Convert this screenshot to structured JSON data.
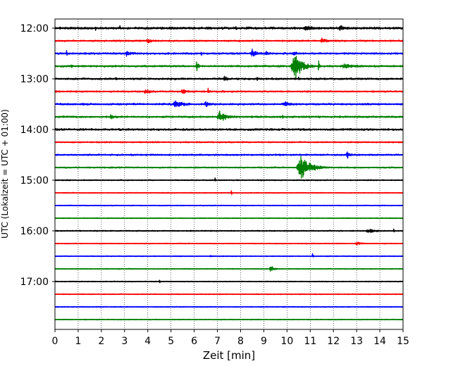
{
  "chart_data": {
    "type": "line",
    "subtype": "seismic-helicorder",
    "xlabel": "Zeit  [min]",
    "ylabel": "UTC (Lokalzeit = UTC + 01:00)",
    "xlim": [
      0,
      15
    ],
    "x_ticks": [
      0,
      1,
      2,
      3,
      4,
      5,
      6,
      7,
      8,
      9,
      10,
      11,
      12,
      13,
      14,
      15
    ],
    "x_tick_labels": [
      "0",
      "1",
      "2",
      "3",
      "4",
      "5",
      "6",
      "7",
      "8",
      "9",
      "10",
      "11",
      "12",
      "13",
      "14",
      "15"
    ],
    "vertical_grid": "dotted",
    "trace_interval_min": 15,
    "trace_count": 24,
    "trace_colors": [
      "#000000",
      "#ff0000",
      "#0000ff",
      "#008000"
    ],
    "y_tick_labels": [
      "12:00",
      "13:00",
      "14:00",
      "15:00",
      "16:00",
      "17:00"
    ],
    "y_tick_trace_index": [
      0,
      4,
      8,
      12,
      16,
      20
    ],
    "traces": [
      {
        "start": "12:00",
        "noise": 0.1,
        "events": [
          {
            "t": 1.75,
            "amp": 0.45,
            "dur": 0.05
          },
          {
            "t": 2.8,
            "amp": 0.35,
            "dur": 0.05
          },
          {
            "t": 7.8,
            "amp": 0.35,
            "dur": 0.05
          },
          {
            "t": 10.8,
            "amp": 0.3,
            "dur": 0.4
          },
          {
            "t": 12.3,
            "amp": 0.45,
            "dur": 0.25
          }
        ]
      },
      {
        "start": "12:15",
        "noise": 0.07,
        "events": [
          {
            "t": 4.0,
            "amp": 0.3,
            "dur": 0.3
          },
          {
            "t": 11.5,
            "amp": 0.35,
            "dur": 0.4
          }
        ]
      },
      {
        "start": "12:30",
        "noise": 0.08,
        "events": [
          {
            "t": 0.5,
            "amp": 0.4,
            "dur": 0.05
          },
          {
            "t": 3.1,
            "amp": 0.3,
            "dur": 0.3
          },
          {
            "t": 6.3,
            "amp": 0.35,
            "dur": 0.05
          },
          {
            "t": 8.5,
            "amp": 0.55,
            "dur": 0.35
          },
          {
            "t": 9.1,
            "amp": 0.3,
            "dur": 0.2
          },
          {
            "t": 10.3,
            "amp": 0.45,
            "dur": 0.15
          }
        ]
      },
      {
        "start": "12:45",
        "noise": 0.08,
        "events": [
          {
            "t": 0.7,
            "amp": 0.35,
            "dur": 0.05
          },
          {
            "t": 6.1,
            "amp": 1.1,
            "dur": 0.12
          },
          {
            "t": 10.3,
            "amp": 2.2,
            "dur": 0.6
          },
          {
            "t": 11.35,
            "amp": 1.0,
            "dur": 0.1
          },
          {
            "t": 12.5,
            "amp": 0.3,
            "dur": 0.6
          }
        ]
      },
      {
        "start": "13:00",
        "noise": 0.08,
        "events": [
          {
            "t": 2.6,
            "amp": 0.45,
            "dur": 0.05
          },
          {
            "t": 7.3,
            "amp": 0.35,
            "dur": 0.2
          },
          {
            "t": 8.7,
            "amp": 0.3,
            "dur": 0.05
          },
          {
            "t": 10.5,
            "amp": 0.4,
            "dur": 0.05
          }
        ]
      },
      {
        "start": "13:15",
        "noise": 0.07,
        "events": [
          {
            "t": 3.9,
            "amp": 0.3,
            "dur": 0.3
          },
          {
            "t": 5.5,
            "amp": 0.3,
            "dur": 0.4
          },
          {
            "t": 6.6,
            "amp": 0.35,
            "dur": 0.1
          }
        ]
      },
      {
        "start": "13:30",
        "noise": 0.08,
        "events": [
          {
            "t": 1.2,
            "amp": 0.35,
            "dur": 0.05
          },
          {
            "t": 5.2,
            "amp": 0.55,
            "dur": 0.5
          },
          {
            "t": 6.5,
            "amp": 0.35,
            "dur": 0.3
          },
          {
            "t": 9.9,
            "amp": 0.3,
            "dur": 0.4
          }
        ]
      },
      {
        "start": "13:45",
        "noise": 0.08,
        "events": [
          {
            "t": 2.4,
            "amp": 0.3,
            "dur": 0.25
          },
          {
            "t": 7.1,
            "amp": 0.75,
            "dur": 0.5
          },
          {
            "t": 9.8,
            "amp": 0.3,
            "dur": 0.05
          }
        ]
      },
      {
        "start": "14:00",
        "noise": 0.09,
        "events": []
      },
      {
        "start": "14:15",
        "noise": 0.06,
        "events": []
      },
      {
        "start": "14:30",
        "noise": 0.07,
        "events": [
          {
            "t": 12.6,
            "amp": 0.5,
            "dur": 0.2
          }
        ]
      },
      {
        "start": "14:45",
        "noise": 0.06,
        "events": [
          {
            "t": 10.6,
            "amp": 1.8,
            "dur": 0.8
          }
        ]
      },
      {
        "start": "15:00",
        "noise": 0.05,
        "events": [
          {
            "t": 6.9,
            "amp": 0.35,
            "dur": 0.05
          }
        ]
      },
      {
        "start": "15:15",
        "noise": 0.04,
        "events": [
          {
            "t": 7.6,
            "amp": 0.45,
            "dur": 0.05
          }
        ]
      },
      {
        "start": "15:30",
        "noise": 0.04,
        "events": []
      },
      {
        "start": "15:45",
        "noise": 0.04,
        "events": []
      },
      {
        "start": "16:00",
        "noise": 0.05,
        "events": [
          {
            "t": 13.5,
            "amp": 0.3,
            "dur": 0.4
          },
          {
            "t": 14.6,
            "amp": 0.4,
            "dur": 0.05
          }
        ]
      },
      {
        "start": "16:15",
        "noise": 0.04,
        "events": [
          {
            "t": 13.0,
            "amp": 0.25,
            "dur": 0.3
          }
        ]
      },
      {
        "start": "16:30",
        "noise": 0.04,
        "events": [
          {
            "t": 6.7,
            "amp": 0.3,
            "dur": 0.05
          },
          {
            "t": 11.1,
            "amp": 0.45,
            "dur": 0.05
          }
        ]
      },
      {
        "start": "16:45",
        "noise": 0.04,
        "events": [
          {
            "t": 9.3,
            "amp": 0.55,
            "dur": 0.25
          }
        ]
      },
      {
        "start": "17:00",
        "noise": 0.04,
        "events": [
          {
            "t": 4.5,
            "amp": 0.5,
            "dur": 0.05
          }
        ]
      },
      {
        "start": "17:15",
        "noise": 0.04,
        "events": []
      },
      {
        "start": "17:30",
        "noise": 0.04,
        "events": []
      },
      {
        "start": "17:45",
        "noise": 0.04,
        "events": []
      }
    ]
  }
}
